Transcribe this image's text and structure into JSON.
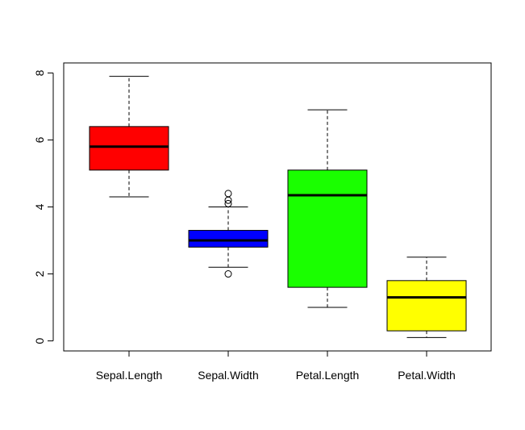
{
  "chart_data": {
    "type": "box",
    "title": "",
    "xlabel": "",
    "ylabel": "",
    "ylim": [
      -0.3,
      8.3
    ],
    "y_ticks": [
      0,
      2,
      4,
      6,
      8
    ],
    "y_tick_labels": [
      "0",
      "2",
      "4",
      "6",
      "8"
    ],
    "grid": false,
    "legend": "none",
    "categories": [
      "Sepal.Length",
      "Sepal.Width",
      "Petal.Length",
      "Petal.Width"
    ],
    "boxes": [
      {
        "label": "Sepal.Length",
        "color": "#ff0000",
        "whisker_low": 4.3,
        "q1": 5.1,
        "median": 5.8,
        "q3": 6.4,
        "whisker_high": 7.9,
        "outliers": []
      },
      {
        "label": "Sepal.Width",
        "color": "#0000ff",
        "whisker_low": 2.2,
        "q1": 2.8,
        "median": 3.0,
        "q3": 3.3,
        "whisker_high": 4.0,
        "outliers": [
          2.0,
          4.1,
          4.2,
          4.4
        ]
      },
      {
        "label": "Petal.Length",
        "color": "#1aff00",
        "whisker_low": 1.0,
        "q1": 1.6,
        "median": 4.35,
        "q3": 5.1,
        "whisker_high": 6.9,
        "outliers": []
      },
      {
        "label": "Petal.Width",
        "color": "#ffff00",
        "whisker_low": 0.1,
        "q1": 0.3,
        "median": 1.3,
        "q3": 1.8,
        "whisker_high": 2.5,
        "outliers": []
      }
    ]
  }
}
